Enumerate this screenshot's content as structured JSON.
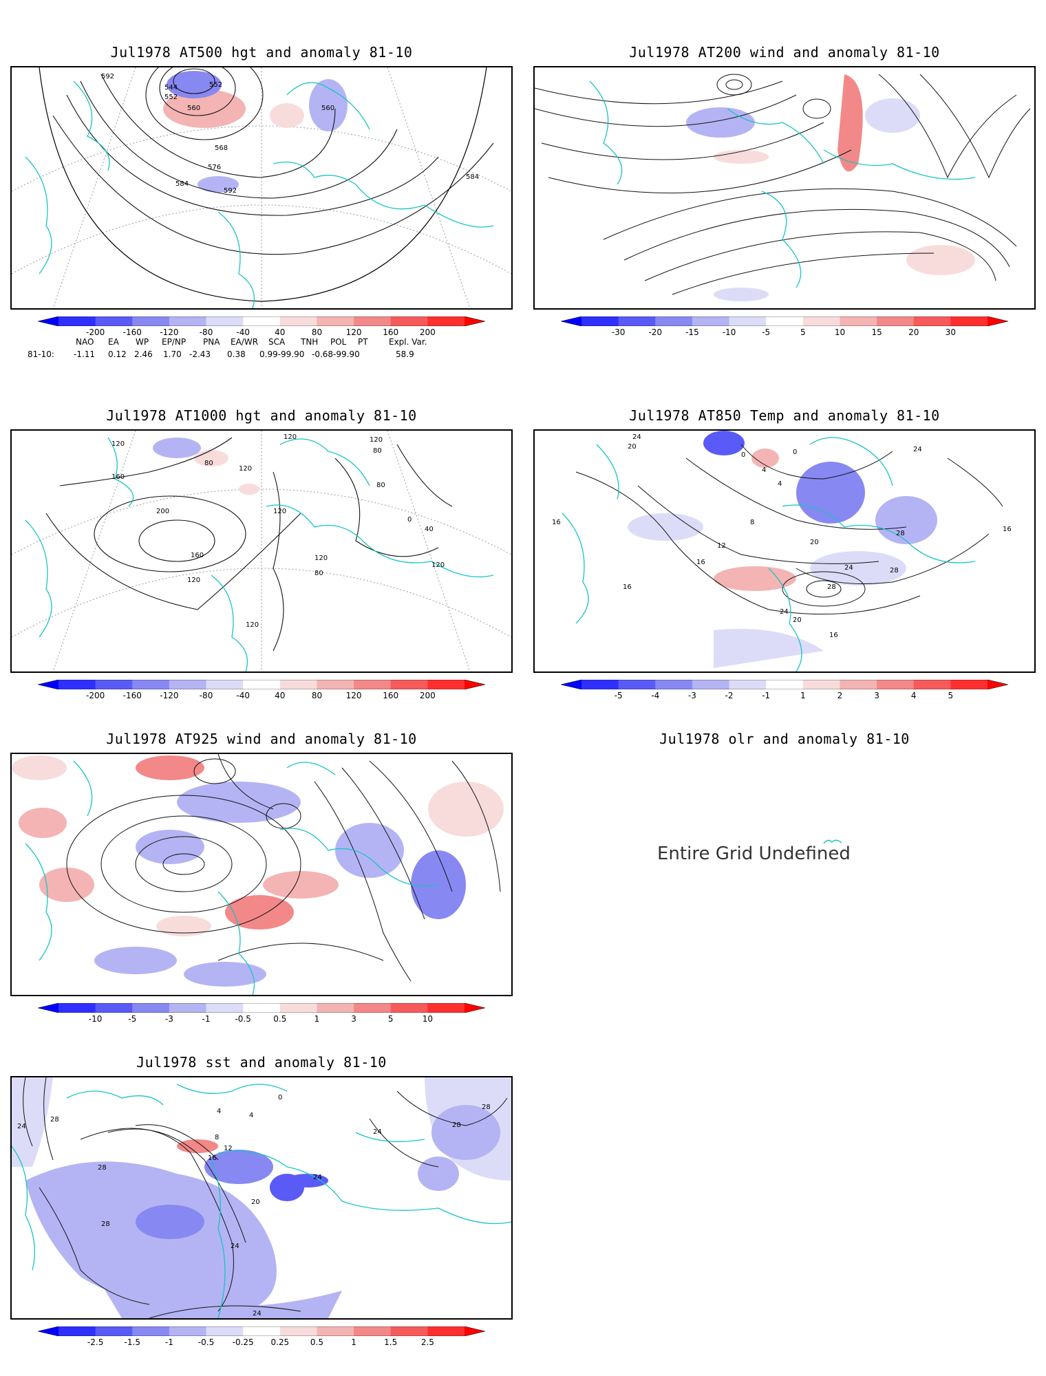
{
  "panels": {
    "p500": {
      "title": "Jul1978 AT500 hgt and anomaly 81-10"
    },
    "p200": {
      "title": "Jul1978 AT200 wind and anomaly 81-10"
    },
    "p1000": {
      "title": "Jul1978 AT1000 hgt and anomaly 81-10"
    },
    "p850": {
      "title": "Jul1978 AT850 Temp and anomaly 81-10"
    },
    "p925": {
      "title": "Jul1978 AT925 wind and anomaly 81-10"
    },
    "olr": {
      "title": "Jul1978 olr and anomaly 81-10",
      "message": "Entire Grid Undefined"
    },
    "sst": {
      "title": "Jul1978 sst and anomaly 81-10"
    }
  },
  "contour_labels": {
    "p500": [
      "592",
      "544",
      "552",
      "552",
      "560",
      "560",
      "568",
      "576",
      "584",
      "592",
      "584"
    ],
    "p1000": [
      "120",
      "120",
      "80",
      "120",
      "120",
      "80",
      "160",
      "200",
      "160",
      "120",
      "120",
      "80",
      "80",
      "120",
      "120",
      "0",
      "40",
      "120"
    ],
    "p850": [
      "24",
      "20",
      "0",
      "0",
      "4",
      "4",
      "8",
      "12",
      "16",
      "16",
      "16",
      "20",
      "24",
      "24",
      "28",
      "28",
      "28",
      "20",
      "16",
      "16",
      "24"
    ],
    "sst": [
      "24",
      "28",
      "28",
      "28",
      "24",
      "20",
      "16",
      "12",
      "8",
      "4",
      "0",
      "4",
      "24",
      "24",
      "28",
      "28",
      "24"
    ]
  },
  "colorbars": {
    "hgt": [
      "-200",
      "-160",
      "-120",
      "-80",
      "-40",
      "40",
      "80",
      "120",
      "160",
      "200"
    ],
    "wind200": [
      "-30",
      "-20",
      "-15",
      "-10",
      "-5",
      "5",
      "10",
      "15",
      "20",
      "30"
    ],
    "temp": [
      "-5",
      "-4",
      "-3",
      "-2",
      "-1",
      "1",
      "2",
      "3",
      "4",
      "5"
    ],
    "wind925": [
      "-10",
      "-5",
      "-3",
      "-1",
      "-0.5",
      "0.5",
      "1",
      "3",
      "5",
      "10"
    ],
    "sst": [
      "-2.5",
      "-1.5",
      "-1",
      "-0.5",
      "-0.25",
      "0.25",
      "0.5",
      "1",
      "1.5",
      "2.5"
    ]
  },
  "colors": {
    "neg": [
      "#2f2fff",
      "#5a5af7",
      "#8888f2",
      "#b4b4f4",
      "#dcdcf8"
    ],
    "pos": [
      "#f8dcdc",
      "#f4b4b4",
      "#f28888",
      "#f75a5a",
      "#ff2f2f"
    ],
    "coast": "#17c4c4"
  },
  "indices": {
    "headers": [
      "NAO",
      "EA",
      "WP",
      "EP/NP",
      "PNA",
      "EA/WR",
      "SCA",
      "TNH",
      "POL",
      "PT",
      "Expl. Var."
    ],
    "row_label": "81-10:",
    "values": [
      "-1.11",
      "0.12",
      "2.46",
      "1.70",
      "-2.43",
      "0.38",
      "0.99-99.90",
      "-0.68-99.90",
      "58.9"
    ]
  }
}
